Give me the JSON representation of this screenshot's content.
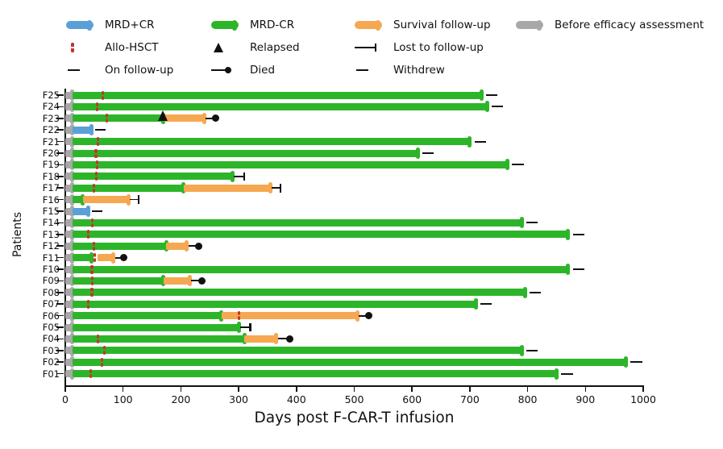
{
  "colors": {
    "before": "#a8a8a8",
    "mrd_pos": "#5b9fd9",
    "mrd_neg": "#2db52a",
    "survival": "#f5a850",
    "hsct": "#c2352b",
    "marker": "#111111"
  },
  "legend": {
    "items": [
      {
        "label": "MRD+CR",
        "type": "bar",
        "color_key": "mrd_pos"
      },
      {
        "label": "MRD-CR",
        "type": "bar",
        "color_key": "mrd_neg"
      },
      {
        "label": "Survival follow-up",
        "type": "bar",
        "color_key": "survival"
      },
      {
        "label": "Before efficacy assessment",
        "type": "bar",
        "color_key": "before"
      },
      {
        "label": "Allo-HSCT",
        "type": "hsct"
      },
      {
        "label": "Relapsed",
        "type": "triangle"
      },
      {
        "label": "Lost to follow-up",
        "type": "lost"
      },
      {
        "label": "On follow-up",
        "type": "dash"
      },
      {
        "label": "Died",
        "type": "died"
      },
      {
        "label": "Withdrew",
        "type": "dash"
      }
    ]
  },
  "chart_data": {
    "type": "bar",
    "subtype": "swimmer",
    "title": "",
    "xlabel": "Days post F-CAR-T infusion",
    "ylabel": "Patients",
    "xlim": [
      0,
      1000
    ],
    "xticks": [
      0,
      100,
      200,
      300,
      400,
      500,
      600,
      700,
      800,
      900,
      1000
    ],
    "grid": false,
    "legend_position": "top",
    "segment_types": [
      "before",
      "mrd_pos",
      "mrd_neg",
      "survival"
    ],
    "patients": [
      {
        "id": "F25",
        "segments": [
          {
            "type": "before",
            "start": 0,
            "end": 12
          },
          {
            "type": "mrd_neg",
            "start": 12,
            "end": 720
          }
        ],
        "markers": [
          {
            "type": "hsct",
            "day": 65
          },
          {
            "type": "dash",
            "from": 728,
            "to": 748,
            "meaning": "on-follow-up"
          }
        ]
      },
      {
        "id": "F24",
        "segments": [
          {
            "type": "before",
            "start": 0,
            "end": 12
          },
          {
            "type": "mrd_neg",
            "start": 12,
            "end": 730
          }
        ],
        "markers": [
          {
            "type": "hsct",
            "day": 55
          },
          {
            "type": "dash",
            "from": 738,
            "to": 758,
            "meaning": "on-follow-up"
          }
        ]
      },
      {
        "id": "F23",
        "segments": [
          {
            "type": "before",
            "start": 0,
            "end": 12
          },
          {
            "type": "mrd_neg",
            "start": 12,
            "end": 170
          },
          {
            "type": "survival",
            "start": 170,
            "end": 240
          }
        ],
        "markers": [
          {
            "type": "hsct",
            "day": 72
          },
          {
            "type": "relapsed",
            "day": 170
          },
          {
            "type": "died",
            "from": 240,
            "day": 260
          }
        ]
      },
      {
        "id": "F22",
        "segments": [
          {
            "type": "before",
            "start": 0,
            "end": 12
          },
          {
            "type": "mrd_pos",
            "start": 12,
            "end": 45
          }
        ],
        "markers": [
          {
            "type": "dash",
            "from": 52,
            "to": 70,
            "meaning": "withdrew"
          }
        ]
      },
      {
        "id": "F21",
        "segments": [
          {
            "type": "before",
            "start": 0,
            "end": 12
          },
          {
            "type": "mrd_neg",
            "start": 12,
            "end": 700
          }
        ],
        "markers": [
          {
            "type": "hsct",
            "day": 57
          },
          {
            "type": "dash",
            "from": 708,
            "to": 728,
            "meaning": "on-follow-up"
          }
        ]
      },
      {
        "id": "F20",
        "segments": [
          {
            "type": "before",
            "start": 0,
            "end": 12
          },
          {
            "type": "mrd_neg",
            "start": 12,
            "end": 610
          }
        ],
        "markers": [
          {
            "type": "hsct",
            "day": 53
          },
          {
            "type": "dash",
            "from": 618,
            "to": 638,
            "meaning": "on-follow-up"
          }
        ]
      },
      {
        "id": "F19",
        "segments": [
          {
            "type": "before",
            "start": 0,
            "end": 12
          },
          {
            "type": "mrd_neg",
            "start": 12,
            "end": 765
          }
        ],
        "markers": [
          {
            "type": "hsct",
            "day": 55
          },
          {
            "type": "dash",
            "from": 773,
            "to": 793,
            "meaning": "on-follow-up"
          }
        ]
      },
      {
        "id": "F18",
        "segments": [
          {
            "type": "before",
            "start": 0,
            "end": 12
          },
          {
            "type": "mrd_neg",
            "start": 12,
            "end": 290
          }
        ],
        "markers": [
          {
            "type": "hsct",
            "day": 54
          },
          {
            "type": "lost",
            "from": 292,
            "day": 310
          }
        ]
      },
      {
        "id": "F17",
        "segments": [
          {
            "type": "before",
            "start": 0,
            "end": 12
          },
          {
            "type": "mrd_neg",
            "start": 12,
            "end": 205
          },
          {
            "type": "survival",
            "start": 205,
            "end": 355
          }
        ],
        "markers": [
          {
            "type": "hsct",
            "day": 50
          },
          {
            "type": "lost",
            "from": 357,
            "day": 372
          }
        ]
      },
      {
        "id": "F16",
        "segments": [
          {
            "type": "before",
            "start": 0,
            "end": 12
          },
          {
            "type": "mrd_neg",
            "start": 12,
            "end": 30
          },
          {
            "type": "survival",
            "start": 30,
            "end": 110
          }
        ],
        "markers": [
          {
            "type": "lost",
            "from": 112,
            "day": 127
          }
        ]
      },
      {
        "id": "F15",
        "segments": [
          {
            "type": "before",
            "start": 0,
            "end": 12
          },
          {
            "type": "mrd_pos",
            "start": 12,
            "end": 40
          }
        ],
        "markers": [
          {
            "type": "dash",
            "from": 46,
            "to": 64,
            "meaning": "withdrew"
          }
        ]
      },
      {
        "id": "F14",
        "segments": [
          {
            "type": "before",
            "start": 0,
            "end": 12
          },
          {
            "type": "mrd_neg",
            "start": 12,
            "end": 790
          }
        ],
        "markers": [
          {
            "type": "hsct",
            "day": 47
          },
          {
            "type": "dash",
            "from": 798,
            "to": 818,
            "meaning": "on-follow-up"
          }
        ]
      },
      {
        "id": "F13",
        "segments": [
          {
            "type": "before",
            "start": 0,
            "end": 12
          },
          {
            "type": "mrd_neg",
            "start": 12,
            "end": 870
          }
        ],
        "markers": [
          {
            "type": "hsct",
            "day": 40
          },
          {
            "type": "dash",
            "from": 878,
            "to": 898,
            "meaning": "on-follow-up"
          }
        ]
      },
      {
        "id": "F12",
        "segments": [
          {
            "type": "before",
            "start": 0,
            "end": 12
          },
          {
            "type": "mrd_neg",
            "start": 12,
            "end": 175
          },
          {
            "type": "survival",
            "start": 175,
            "end": 210
          }
        ],
        "markers": [
          {
            "type": "hsct",
            "day": 49
          },
          {
            "type": "died",
            "from": 210,
            "day": 231
          }
        ]
      },
      {
        "id": "F11",
        "segments": [
          {
            "type": "before",
            "start": 0,
            "end": 12
          },
          {
            "type": "mrd_neg",
            "start": 12,
            "end": 46
          },
          {
            "type": "survival",
            "start": 56,
            "end": 83
          }
        ],
        "markers": [
          {
            "type": "hsct",
            "day": 51
          },
          {
            "type": "died",
            "from": 83,
            "day": 101
          }
        ]
      },
      {
        "id": "F10",
        "segments": [
          {
            "type": "before",
            "start": 0,
            "end": 12
          },
          {
            "type": "mrd_neg",
            "start": 12,
            "end": 870
          }
        ],
        "markers": [
          {
            "type": "hsct",
            "day": 46
          },
          {
            "type": "dash",
            "from": 878,
            "to": 898,
            "meaning": "on-follow-up"
          }
        ]
      },
      {
        "id": "F09",
        "segments": [
          {
            "type": "before",
            "start": 0,
            "end": 12
          },
          {
            "type": "mrd_neg",
            "start": 12,
            "end": 170
          },
          {
            "type": "survival",
            "start": 170,
            "end": 215
          }
        ],
        "markers": [
          {
            "type": "hsct",
            "day": 47
          },
          {
            "type": "died",
            "from": 215,
            "day": 236
          }
        ]
      },
      {
        "id": "F08",
        "segments": [
          {
            "type": "before",
            "start": 0,
            "end": 12
          },
          {
            "type": "mrd_neg",
            "start": 12,
            "end": 795
          }
        ],
        "markers": [
          {
            "type": "hsct",
            "day": 46
          },
          {
            "type": "dash",
            "from": 803,
            "to": 823,
            "meaning": "on-follow-up"
          }
        ]
      },
      {
        "id": "F07",
        "segments": [
          {
            "type": "before",
            "start": 0,
            "end": 12
          },
          {
            "type": "mrd_neg",
            "start": 12,
            "end": 710
          }
        ],
        "markers": [
          {
            "type": "hsct",
            "day": 40
          },
          {
            "type": "dash",
            "from": 718,
            "to": 738,
            "meaning": "on-follow-up"
          }
        ]
      },
      {
        "id": "F06",
        "segments": [
          {
            "type": "before",
            "start": 0,
            "end": 12
          },
          {
            "type": "mrd_neg",
            "start": 12,
            "end": 270
          },
          {
            "type": "survival",
            "start": 270,
            "end": 505
          }
        ],
        "markers": [
          {
            "type": "hsct",
            "day": 300
          },
          {
            "type": "died",
            "from": 505,
            "day": 525
          }
        ]
      },
      {
        "id": "F05",
        "segments": [
          {
            "type": "before",
            "start": 0,
            "end": 12
          },
          {
            "type": "mrd_neg",
            "start": 12,
            "end": 300
          }
        ],
        "markers": [
          {
            "type": "lost",
            "from": 302,
            "day": 320
          }
        ]
      },
      {
        "id": "F04",
        "segments": [
          {
            "type": "before",
            "start": 0,
            "end": 12
          },
          {
            "type": "mrd_neg",
            "start": 12,
            "end": 310
          },
          {
            "type": "survival",
            "start": 310,
            "end": 365
          }
        ],
        "markers": [
          {
            "type": "hsct",
            "day": 56
          },
          {
            "type": "died",
            "from": 365,
            "day": 388
          }
        ]
      },
      {
        "id": "F03",
        "segments": [
          {
            "type": "before",
            "start": 0,
            "end": 12
          },
          {
            "type": "mrd_neg",
            "start": 12,
            "end": 790
          }
        ],
        "markers": [
          {
            "type": "hsct",
            "day": 68
          },
          {
            "type": "dash",
            "from": 798,
            "to": 818,
            "meaning": "on-follow-up"
          }
        ]
      },
      {
        "id": "F02",
        "segments": [
          {
            "type": "before",
            "start": 0,
            "end": 12
          },
          {
            "type": "mrd_neg",
            "start": 12,
            "end": 970
          }
        ],
        "markers": [
          {
            "type": "hsct",
            "day": 63
          },
          {
            "type": "dash",
            "from": 978,
            "to": 998,
            "meaning": "on-follow-up"
          }
        ]
      },
      {
        "id": "F01",
        "segments": [
          {
            "type": "before",
            "start": 0,
            "end": 12
          },
          {
            "type": "mrd_neg",
            "start": 12,
            "end": 850
          }
        ],
        "markers": [
          {
            "type": "hsct",
            "day": 44
          },
          {
            "type": "dash",
            "from": 858,
            "to": 878,
            "meaning": "on-follow-up"
          }
        ]
      }
    ]
  }
}
